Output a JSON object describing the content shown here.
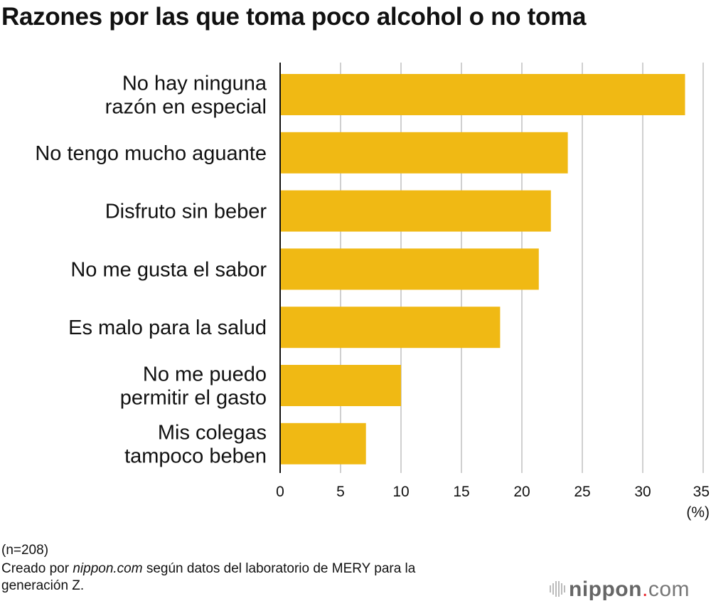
{
  "chart_data": {
    "type": "bar",
    "orientation": "horizontal",
    "title": "Razones por las que toma poco alcohol o no toma",
    "categories": [
      [
        "No hay ninguna",
        "razón en especial"
      ],
      [
        "No tengo mucho aguante"
      ],
      [
        "Disfruto sin beber"
      ],
      [
        "No me gusta el sabor"
      ],
      [
        "Es malo para la salud"
      ],
      [
        "No me puedo",
        "permitir el gasto"
      ],
      [
        "Mis colegas",
        "tampoco beben"
      ]
    ],
    "values": [
      33.5,
      23.8,
      22.4,
      21.4,
      18.2,
      10.0,
      7.1
    ],
    "xlim": [
      0,
      35
    ],
    "xticks": [
      "0",
      "5",
      "10",
      "15",
      "20",
      "25",
      "30",
      "35"
    ],
    "xunit": "(%)",
    "grid": true,
    "bar_color": "#f0b914"
  },
  "footer": {
    "n": "(n=208)",
    "source_prefix": "Creado por ",
    "source_site": "nippon.com",
    "source_suffix": " según datos del laboratorio de MERY para la",
    "source_line2": "generación Z."
  },
  "logo": {
    "text": "nippon.com",
    "accent_color": "#e8242b"
  }
}
